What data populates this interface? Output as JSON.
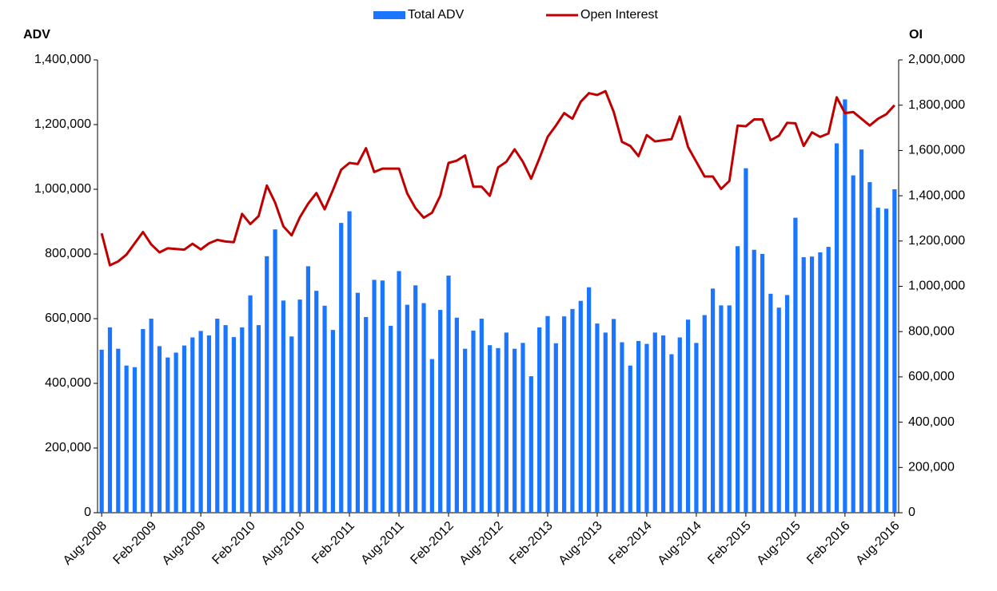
{
  "chart_data": {
    "type": "bar-line",
    "y_label": "ADV",
    "y2_label": "OI",
    "categories": [
      "Aug-2008",
      null,
      null,
      null,
      null,
      null,
      "Feb-2009",
      null,
      null,
      null,
      null,
      null,
      "Aug-2009",
      null,
      null,
      null,
      null,
      null,
      "Feb-2010",
      null,
      null,
      null,
      null,
      null,
      "Aug-2010",
      null,
      null,
      null,
      null,
      null,
      "Feb-2011",
      null,
      null,
      null,
      null,
      null,
      "Aug-2011",
      null,
      null,
      null,
      null,
      null,
      "Feb-2012",
      null,
      null,
      null,
      null,
      null,
      "Aug-2012",
      null,
      null,
      null,
      null,
      null,
      "Feb-2013",
      null,
      null,
      null,
      null,
      null,
      "Aug-2013",
      null,
      null,
      null,
      null,
      null,
      "Feb-2014",
      null,
      null,
      null,
      null,
      null,
      "Aug-2014",
      null,
      null,
      null,
      null,
      null,
      "Feb-2015",
      null,
      null,
      null,
      null,
      null,
      "Aug-2015",
      null,
      null,
      null,
      null,
      null,
      "Feb-2016",
      null,
      null,
      null,
      null,
      null,
      "Aug-2016"
    ],
    "series": [
      {
        "name": "Total ADV",
        "type": "bar",
        "color": "#1a75ff",
        "axis": "y",
        "values": [
          504000,
          573000,
          507000,
          455000,
          450000,
          568000,
          600000,
          515000,
          480000,
          495000,
          517000,
          542000,
          562000,
          548000,
          600000,
          580000,
          543000,
          573000,
          672000,
          580000,
          793000,
          876000,
          656000,
          545000,
          659000,
          762000,
          686000,
          640000,
          565000,
          896000,
          932000,
          680000,
          605000,
          720000,
          718000,
          578000,
          747000,
          643000,
          703000,
          648000,
          475000,
          627000,
          733000,
          603000,
          507000,
          563000,
          600000,
          518000,
          509000,
          557000,
          507000,
          525000,
          422000,
          573000,
          608000,
          524000,
          607000,
          630000,
          655000,
          697000,
          585000,
          557000,
          599000,
          527000,
          455000,
          531000,
          522000,
          557000,
          548000,
          490000,
          542000,
          597000,
          525000,
          611000,
          693000,
          641000,
          641000,
          824000,
          1065000,
          813000,
          800000,
          677000,
          634000,
          673000,
          912000,
          790000,
          792000,
          805000,
          822000,
          1142000,
          1278000,
          1043000,
          1123000,
          1022000,
          943000,
          940000,
          1000000
        ]
      },
      {
        "name": "Open Interest",
        "type": "line",
        "color": "#c00000",
        "axis": "y2",
        "values": [
          1234000,
          1093000,
          1110000,
          1140000,
          1190000,
          1240000,
          1185000,
          1150000,
          1168000,
          1165000,
          1162000,
          1188000,
          1163000,
          1190000,
          1205000,
          1198000,
          1195000,
          1320000,
          1275000,
          1310000,
          1445000,
          1370000,
          1265000,
          1225000,
          1305000,
          1365000,
          1412000,
          1340000,
          1425000,
          1515000,
          1545000,
          1540000,
          1610000,
          1505000,
          1520000,
          1520000,
          1520000,
          1410000,
          1345000,
          1303000,
          1325000,
          1400000,
          1545000,
          1555000,
          1578000,
          1440000,
          1440000,
          1400000,
          1525000,
          1550000,
          1605000,
          1550000,
          1475000,
          1565000,
          1660000,
          1710000,
          1765000,
          1740000,
          1815000,
          1853000,
          1845000,
          1862000,
          1770000,
          1638000,
          1620000,
          1575000,
          1668000,
          1640000,
          1645000,
          1650000,
          1750000,
          1615000,
          1550000,
          1485000,
          1485000,
          1430000,
          1465000,
          1710000,
          1707000,
          1737000,
          1737000,
          1645000,
          1665000,
          1722000,
          1720000,
          1620000,
          1680000,
          1660000,
          1675000,
          1835000,
          1765000,
          1770000,
          1740000,
          1710000,
          1740000,
          1760000,
          1800000
        ]
      }
    ],
    "ylim": [
      0,
      1400000
    ],
    "yticks": [
      0,
      {
        "value": 200000,
        "label": "200,000"
      },
      {
        "value": 400000,
        "label": "400,000"
      },
      {
        "value": 600000,
        "label": "600,000"
      },
      {
        "value": 800000,
        "label": "800,000"
      },
      {
        "value": 1000000,
        "label": "1,000,000"
      },
      {
        "value": 1200000,
        "label": "1,200,000"
      },
      {
        "value": 1400000,
        "label": "1,400,000"
      }
    ],
    "y2lim": [
      0,
      2000000
    ],
    "y2ticks": [
      0,
      {
        "value": 200000,
        "label": "200,000"
      },
      {
        "value": 400000,
        "label": "400,000"
      },
      {
        "value": 600000,
        "label": "600,000"
      },
      {
        "value": 800000,
        "label": "800,000"
      },
      {
        "value": 1000000,
        "label": "1,000,000"
      },
      {
        "value": 1200000,
        "label": "1,200,000"
      },
      {
        "value": 1400000,
        "label": "1,400,000"
      },
      {
        "value": 1600000,
        "label": "1,600,000"
      },
      {
        "value": 1800000,
        "label": "1,800,000"
      },
      {
        "value": 2000000,
        "label": "2,000,000"
      }
    ],
    "legend": "top",
    "grid": false
  }
}
